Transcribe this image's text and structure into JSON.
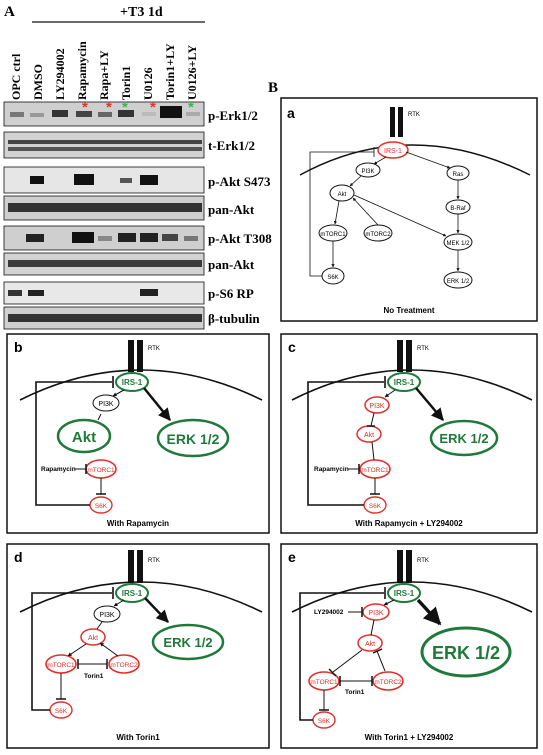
{
  "panel_A": {
    "letter": "A",
    "treatment_header": "+T3 1d",
    "lanes": [
      "OPC ctrl",
      "DMSO",
      "LY294002",
      "Rapamycin",
      "Rapa+LY",
      "Torin1",
      "U0126",
      "Torin1+LY",
      "U0126+LY"
    ],
    "blot_labels": [
      "p-Erk1/2",
      "t-Erk1/2",
      "p-Akt S473",
      "pan-Akt",
      "p-Akt T308",
      "pan-Akt",
      "p-S6 RP",
      "β-tubulin"
    ],
    "star_colors": {
      "red": "#e8302a",
      "green": "#3cb54a"
    }
  },
  "panel_B": {
    "letter": "B"
  },
  "diagrams": {
    "a": {
      "letter": "a",
      "rtk": "RTK",
      "irs": "IRS-1",
      "pi3k": "PI3K",
      "akt": "Akt",
      "mtorc1": "mTORC1",
      "mtorc2": "mTORC2",
      "s6k": "S6K",
      "ras": "Ras",
      "braf": "B-Raf",
      "mek": "MEK 1/2",
      "erk": "ERK 1/2",
      "caption": "No Treatment"
    },
    "b": {
      "letter": "b",
      "rtk": "RTK",
      "irs": "IRS-1",
      "pi3k": "PI3K",
      "akt": "Akt",
      "mtorc1": "mTORC1",
      "s6k": "S6K",
      "erk": "ERK 1/2",
      "drug": "Rapamycin",
      "caption": "With Rapamycin"
    },
    "c": {
      "letter": "c",
      "rtk": "RTK",
      "irs": "IRS-1",
      "pi3k": "PI3K",
      "akt": "Akt",
      "mtorc1": "mTORC1",
      "s6k": "S6K",
      "erk": "ERK 1/2",
      "drug": "Rapamycin",
      "caption": "With Rapamycin + LY294002"
    },
    "d": {
      "letter": "d",
      "rtk": "RTK",
      "irs": "IRS-1",
      "pi3k": "PI3K",
      "akt": "Akt",
      "mtorc1": "mTORC1",
      "mtorc2": "mTORC2",
      "s6k": "S6K",
      "erk": "ERK 1/2",
      "drug": "Torin1",
      "caption": "With Torin1"
    },
    "e": {
      "letter": "e",
      "rtk": "RTK",
      "irs": "IRS-1",
      "pi3k": "PI3K",
      "akt": "Akt",
      "mtorc1": "mTORC1",
      "mtorc2": "mTORC2",
      "s6k": "S6K",
      "erk": "ERK 1/2",
      "drug": "Torin1",
      "drug2": "LY294002",
      "caption": "With Torin1 + LY294002"
    }
  },
  "colors": {
    "red": "#e0302a",
    "green": "#1f7a3a",
    "black": "#111111"
  }
}
